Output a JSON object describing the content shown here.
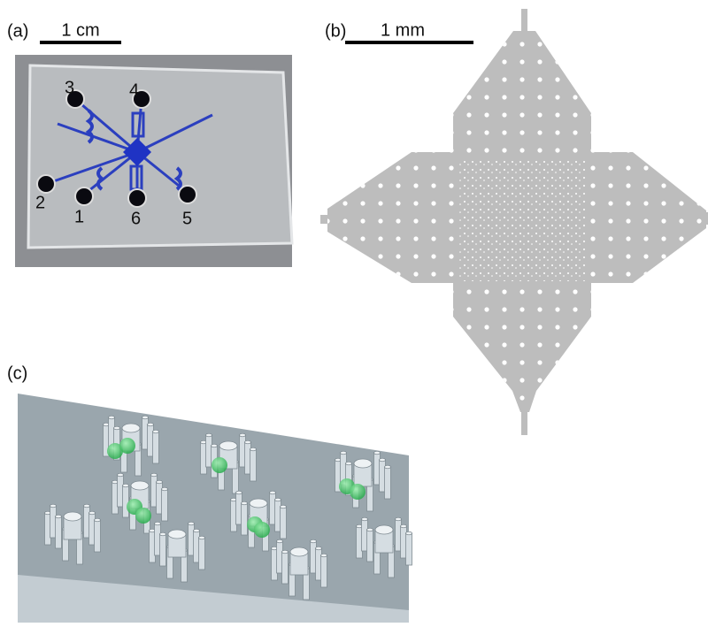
{
  "panels": {
    "a": {
      "label": "(a)",
      "scale": "1 cm",
      "ports": [
        "3",
        "4",
        "2",
        "1",
        "6",
        "5"
      ]
    },
    "b": {
      "label": "(b)",
      "scale": "1 mm"
    },
    "c": {
      "label": "(c)"
    }
  }
}
